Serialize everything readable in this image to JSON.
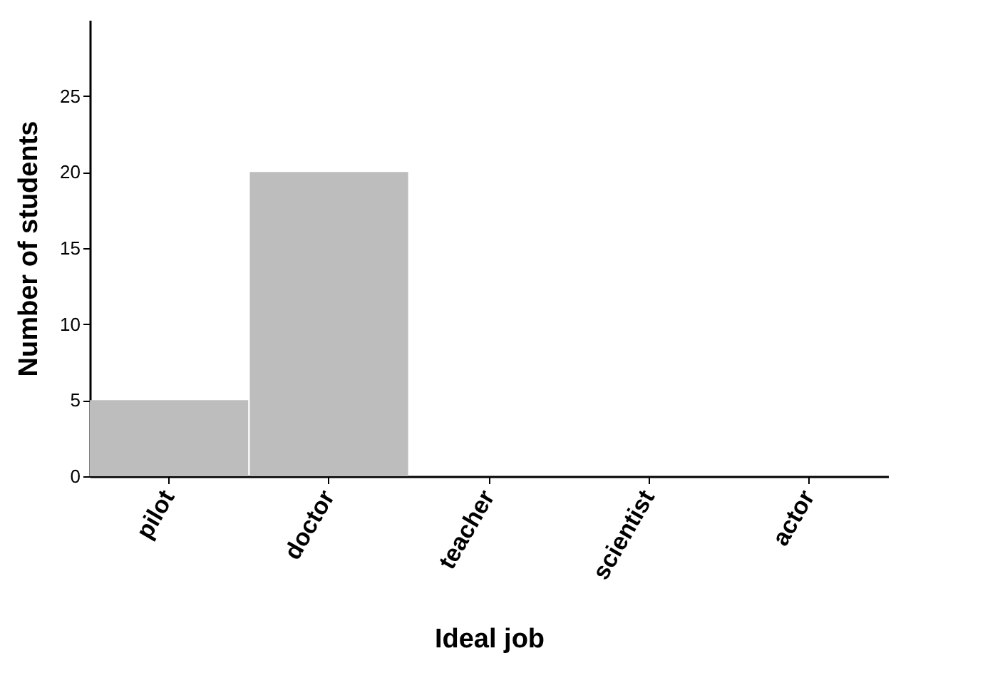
{
  "chart_data": {
    "type": "bar",
    "xlabel": "Ideal job",
    "ylabel": "Number of students",
    "categories": [
      "pilot",
      "doctor",
      "teacher",
      "scientist",
      "actor"
    ],
    "values": [
      5,
      20,
      0,
      0,
      0
    ],
    "color": "#bdbdbe",
    "ylim": [
      0,
      30
    ],
    "yticks": [
      0,
      5,
      10,
      15,
      20,
      25
    ],
    "grid": false
  }
}
